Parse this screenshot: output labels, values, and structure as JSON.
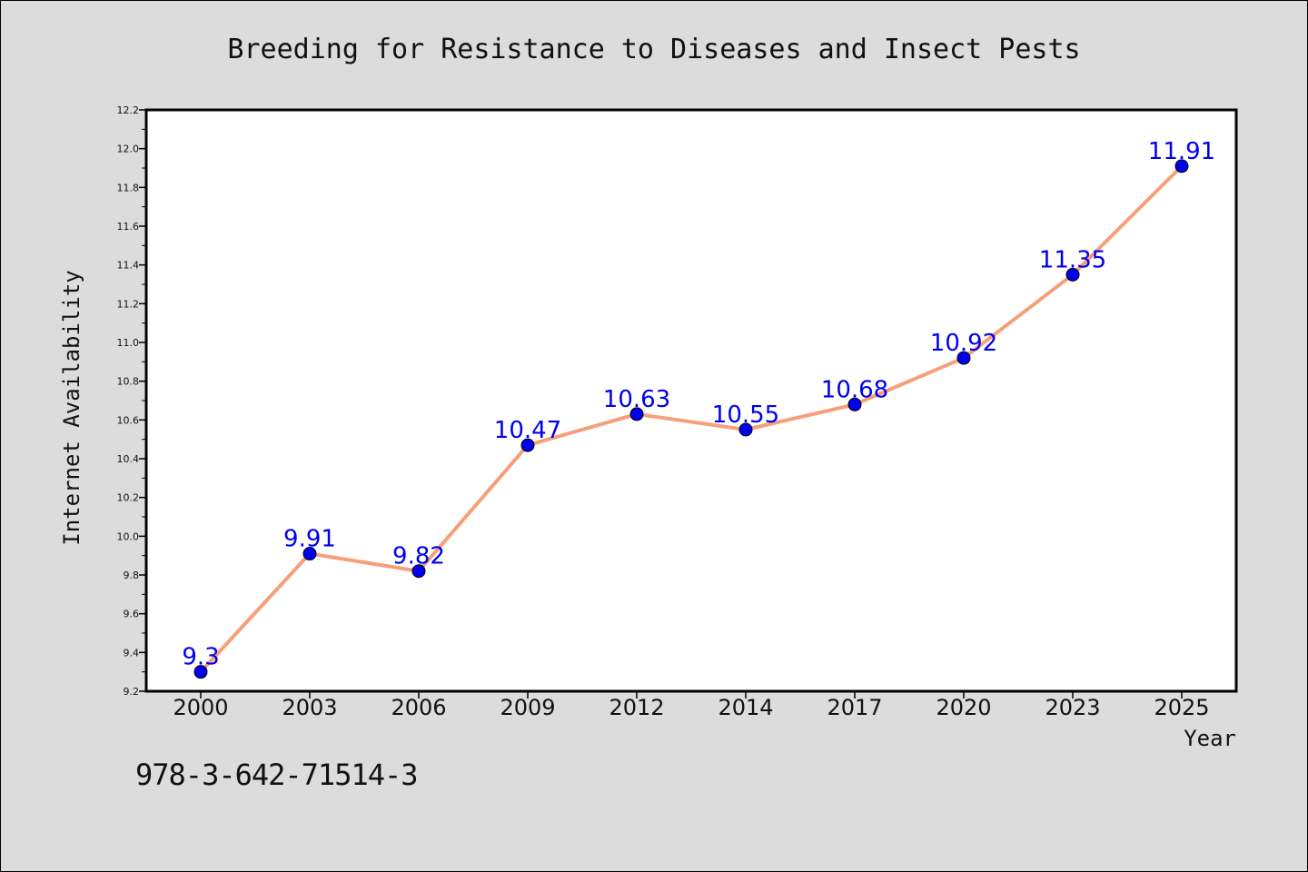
{
  "chart_data": {
    "type": "line",
    "title": "Breeding for Resistance to Diseases and Insect Pests",
    "xlabel": "Year",
    "ylabel": "Internet Availability",
    "categories": [
      "2000",
      "2003",
      "2006",
      "2009",
      "2012",
      "2014",
      "2017",
      "2020",
      "2023",
      "2025"
    ],
    "series": [
      {
        "values": [
          9.3,
          9.91,
          9.82,
          10.47,
          10.63,
          10.55,
          10.68,
          10.92,
          11.35,
          11.91
        ]
      }
    ],
    "data_labels": [
      "9.3",
      "9.91",
      "9.82",
      "10.47",
      "10.63",
      "10.55",
      "10.68",
      "10.92",
      "11.35",
      "11.91"
    ],
    "ylim": [
      9.2,
      12.2
    ],
    "yticks": [
      "9.2",
      "9.4",
      "9.6",
      "9.8",
      "10.0",
      "10.2",
      "10.4",
      "10.6",
      "10.8",
      "11.0",
      "11.2",
      "11.4",
      "11.6",
      "11.8",
      "12.0",
      "12.2"
    ],
    "grid": false,
    "colors": {
      "line": "#f5a07a",
      "marker": "#0000ee",
      "label": "#0000ee",
      "background": "#dcdcdc",
      "plot_background": "#ffffff"
    }
  },
  "footer": {
    "isbn": "978-3-642-71514-3"
  }
}
